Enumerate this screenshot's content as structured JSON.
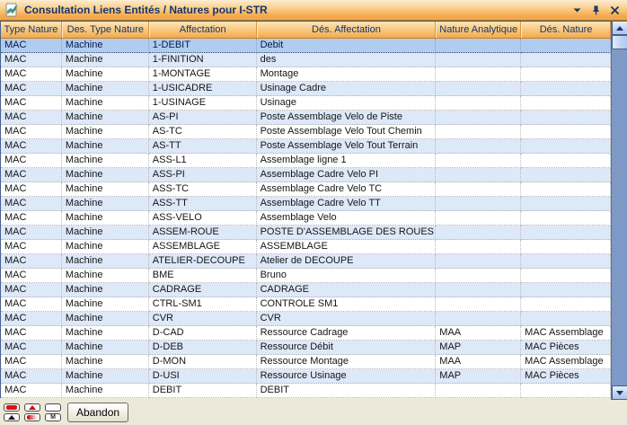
{
  "window": {
    "title": "Consultation Liens Entités / Natures pour I-STR",
    "controls": {
      "collapse": "chevron-down-icon",
      "pin": "pin-icon",
      "close": "close-icon"
    }
  },
  "colors": {
    "titlebar_orange": "#f5a94e",
    "header_orange": "#f2a84e",
    "header_text": "#17356b",
    "selected_row": "#b0cdf0",
    "alt_row": "#dde8f8",
    "scrollbar_track": "#7e99c5",
    "bottom_bar": "#ece9da"
  },
  "table": {
    "columns": [
      "Type Nature",
      "Des. Type Nature",
      "Affectation",
      "Dés. Affectation",
      "Nature Analytique",
      "Dés. Nature"
    ],
    "selected_row_index": 0,
    "rows": [
      [
        "MAC",
        "Machine",
        "1-DEBIT",
        "Debit",
        "",
        ""
      ],
      [
        "MAC",
        "Machine",
        "1-FINITION",
        "des",
        "",
        ""
      ],
      [
        "MAC",
        "Machine",
        "1-MONTAGE",
        "Montage",
        "",
        ""
      ],
      [
        "MAC",
        "Machine",
        "1-USICADRE",
        "Usinage Cadre",
        "",
        ""
      ],
      [
        "MAC",
        "Machine",
        "1-USINAGE",
        "Usinage",
        "",
        ""
      ],
      [
        "MAC",
        "Machine",
        "AS-PI",
        "Poste Assemblage Velo de Piste",
        "",
        ""
      ],
      [
        "MAC",
        "Machine",
        "AS-TC",
        "Poste Assemblage Velo Tout Chemin",
        "",
        ""
      ],
      [
        "MAC",
        "Machine",
        "AS-TT",
        "Poste Assemblage Velo Tout Terrain",
        "",
        ""
      ],
      [
        "MAC",
        "Machine",
        "ASS-L1",
        "Assemblage ligne 1",
        "",
        ""
      ],
      [
        "MAC",
        "Machine",
        "ASS-PI",
        "Assemblage Cadre Velo PI",
        "",
        ""
      ],
      [
        "MAC",
        "Machine",
        "ASS-TC",
        "Assemblage Cadre Velo TC",
        "",
        ""
      ],
      [
        "MAC",
        "Machine",
        "ASS-TT",
        "Assemblage Cadre Velo TT",
        "",
        ""
      ],
      [
        "MAC",
        "Machine",
        "ASS-VELO",
        "Assemblage Velo",
        "",
        ""
      ],
      [
        "MAC",
        "Machine",
        "ASSEM-ROUE",
        "POSTE D'ASSEMBLAGE DES ROUES",
        "",
        ""
      ],
      [
        "MAC",
        "Machine",
        "ASSEMBLAGE",
        "ASSEMBLAGE",
        "",
        ""
      ],
      [
        "MAC",
        "Machine",
        "ATELIER-DECOUPE",
        "Atelier de DECOUPE",
        "",
        ""
      ],
      [
        "MAC",
        "Machine",
        "BME",
        "Bruno",
        "",
        ""
      ],
      [
        "MAC",
        "Machine",
        "CADRAGE",
        "CADRAGE",
        "",
        ""
      ],
      [
        "MAC",
        "Machine",
        "CTRL-SM1",
        "CONTROLE SM1",
        "",
        ""
      ],
      [
        "MAC",
        "Machine",
        "CVR",
        "CVR",
        "",
        ""
      ],
      [
        "MAC",
        "Machine",
        "D-CAD",
        "Ressource Cadrage",
        "MAA",
        "MAC Assemblage"
      ],
      [
        "MAC",
        "Machine",
        "D-DEB",
        "Ressource Débit",
        "MAP",
        "MAC Pièces"
      ],
      [
        "MAC",
        "Machine",
        "D-MON",
        "Ressource Montage",
        "MAA",
        "MAC Assemblage"
      ],
      [
        "MAC",
        "Machine",
        "D-USI",
        "Ressource Usinage",
        "MAP",
        "MAC Pièces"
      ],
      [
        "MAC",
        "Machine",
        "DEBIT",
        "DEBIT",
        "",
        ""
      ]
    ]
  },
  "bottombar": {
    "nav_buttons": [
      {
        "icon": "red-bar-icon",
        "glyph": "red-bar"
      },
      {
        "icon": "red-triangle-up-icon",
        "glyph": "red-triangle-up"
      },
      {
        "icon": "blank-icon",
        "glyph": "blank"
      },
      {
        "icon": "black-triangle-up-icon",
        "glyph": "black-triangle-up"
      },
      {
        "icon": "red-fade-icon",
        "glyph": "red-fade"
      },
      {
        "icon": "m-mark-icon",
        "glyph": "m-mark"
      }
    ],
    "abandon_label": "Abandon"
  }
}
